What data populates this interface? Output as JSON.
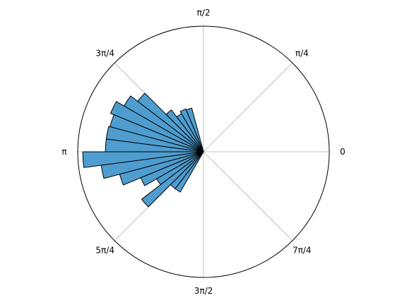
{
  "chart_data": {
    "type": "bar",
    "subtype": "polar-histogram",
    "title": "",
    "xlabel": "",
    "ylabel": "",
    "angle_unit": "radians",
    "angle_tick_labels": [
      "0",
      "π/4",
      "π/2",
      "3π/4",
      "π",
      "5π/4",
      "3π/2",
      "7π/4"
    ],
    "radial_tick_labels": [],
    "rlim": [
      0,
      1.0
    ],
    "grid": true,
    "bar_color": "#4f9dcf",
    "edge_color": "#000000",
    "bins": [
      {
        "theta_start": 1.8326,
        "theta_end": 1.9635,
        "r": 0.36
      },
      {
        "theta_start": 1.9635,
        "theta_end": 2.0944,
        "r": 0.37
      },
      {
        "theta_start": 2.0944,
        "theta_end": 2.2253,
        "r": 0.35
      },
      {
        "theta_start": 2.2253,
        "theta_end": 2.3562,
        "r": 0.42
      },
      {
        "theta_start": 2.3562,
        "theta_end": 2.4871,
        "r": 0.66
      },
      {
        "theta_start": 2.4871,
        "theta_end": 2.618,
        "r": 0.73
      },
      {
        "theta_start": 2.618,
        "theta_end": 2.7489,
        "r": 0.8
      },
      {
        "theta_start": 2.7489,
        "theta_end": 2.8798,
        "r": 0.77
      },
      {
        "theta_start": 2.8798,
        "theta_end": 3.0107,
        "r": 0.78
      },
      {
        "theta_start": 3.0107,
        "theta_end": 3.1416,
        "r": 0.78
      },
      {
        "theta_start": 3.1416,
        "theta_end": 3.2725,
        "r": 0.96
      },
      {
        "theta_start": 3.2725,
        "theta_end": 3.4034,
        "r": 0.82
      },
      {
        "theta_start": 3.4034,
        "theta_end": 3.5343,
        "r": 0.69
      },
      {
        "theta_start": 3.5343,
        "theta_end": 3.6652,
        "r": 0.54
      },
      {
        "theta_start": 3.6652,
        "theta_end": 3.7961,
        "r": 0.43
      },
      {
        "theta_start": 3.7961,
        "theta_end": 3.927,
        "r": 0.62
      },
      {
        "theta_start": 3.927,
        "theta_end": 4.0579,
        "r": 0.37
      },
      {
        "theta_start": 4.0579,
        "theta_end": 4.1888,
        "r": 0.37
      }
    ]
  }
}
